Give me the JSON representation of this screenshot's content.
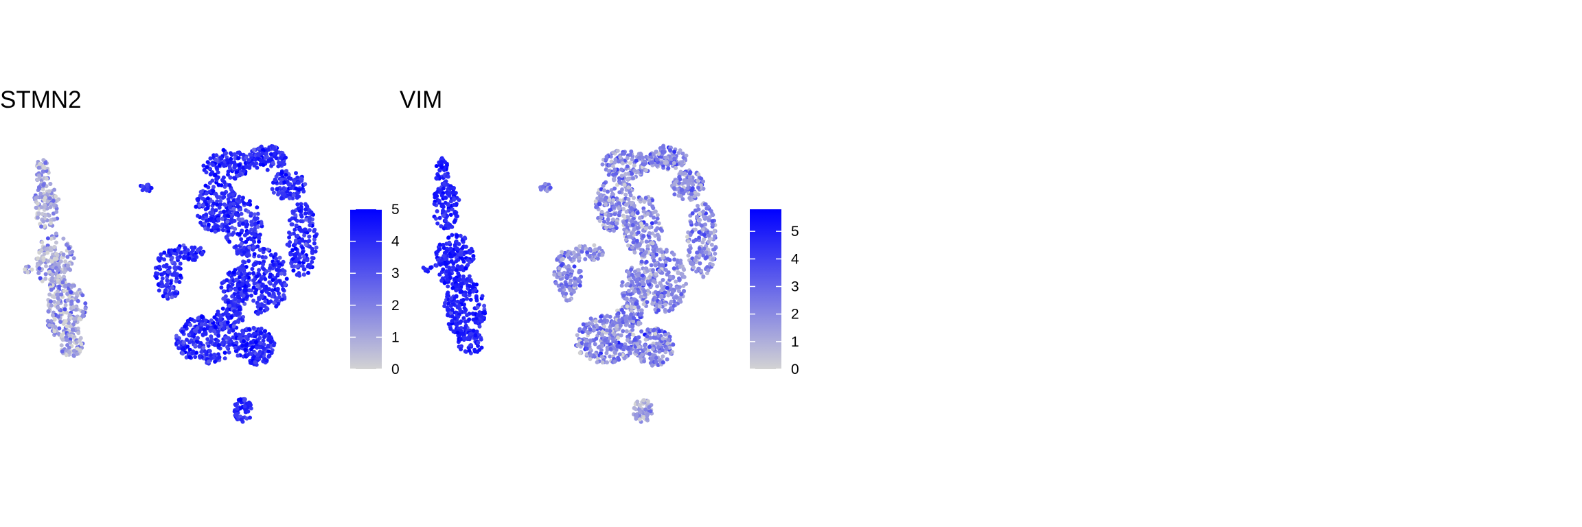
{
  "colors": {
    "low": "#d3d3d3",
    "high": "#0000ff",
    "background": "#ffffff"
  },
  "chart_data": [
    {
      "type": "scatter",
      "title": "STMN2",
      "xlabel": "",
      "ylabel": "",
      "axes_visible": false,
      "legend": {
        "type": "colorbar",
        "placement": "right",
        "min": 0,
        "max": 5,
        "ticks": [
          "0",
          "1",
          "2",
          "3",
          "4",
          "5"
        ]
      },
      "clusters": [
        {
          "id": "left-elongated",
          "expression_mean": 1.0,
          "expression_sd": 1.0,
          "description": "low expression, mostly grey"
        },
        {
          "id": "small-top",
          "expression_mean": 3.8,
          "expression_sd": 0.5
        },
        {
          "id": "large-main",
          "expression_mean": 4.0,
          "expression_sd": 0.6
        },
        {
          "id": "small-bottom",
          "expression_mean": 4.0,
          "expression_sd": 0.5
        }
      ]
    },
    {
      "type": "scatter",
      "title": "VIM",
      "xlabel": "",
      "ylabel": "",
      "axes_visible": false,
      "legend": {
        "type": "colorbar",
        "placement": "right",
        "min": 0,
        "max": 5.8,
        "ticks": [
          "0",
          "1",
          "2",
          "3",
          "4",
          "5"
        ]
      },
      "clusters": [
        {
          "id": "left-elongated",
          "expression_mean": 4.9,
          "expression_sd": 0.5,
          "description": "high expression, saturated blue"
        },
        {
          "id": "small-top",
          "expression_mean": 2.2,
          "expression_sd": 0.8
        },
        {
          "id": "large-main",
          "expression_mean": 2.0,
          "expression_sd": 1.0
        },
        {
          "id": "small-bottom",
          "expression_mean": 1.2,
          "expression_sd": 0.8
        }
      ]
    }
  ]
}
